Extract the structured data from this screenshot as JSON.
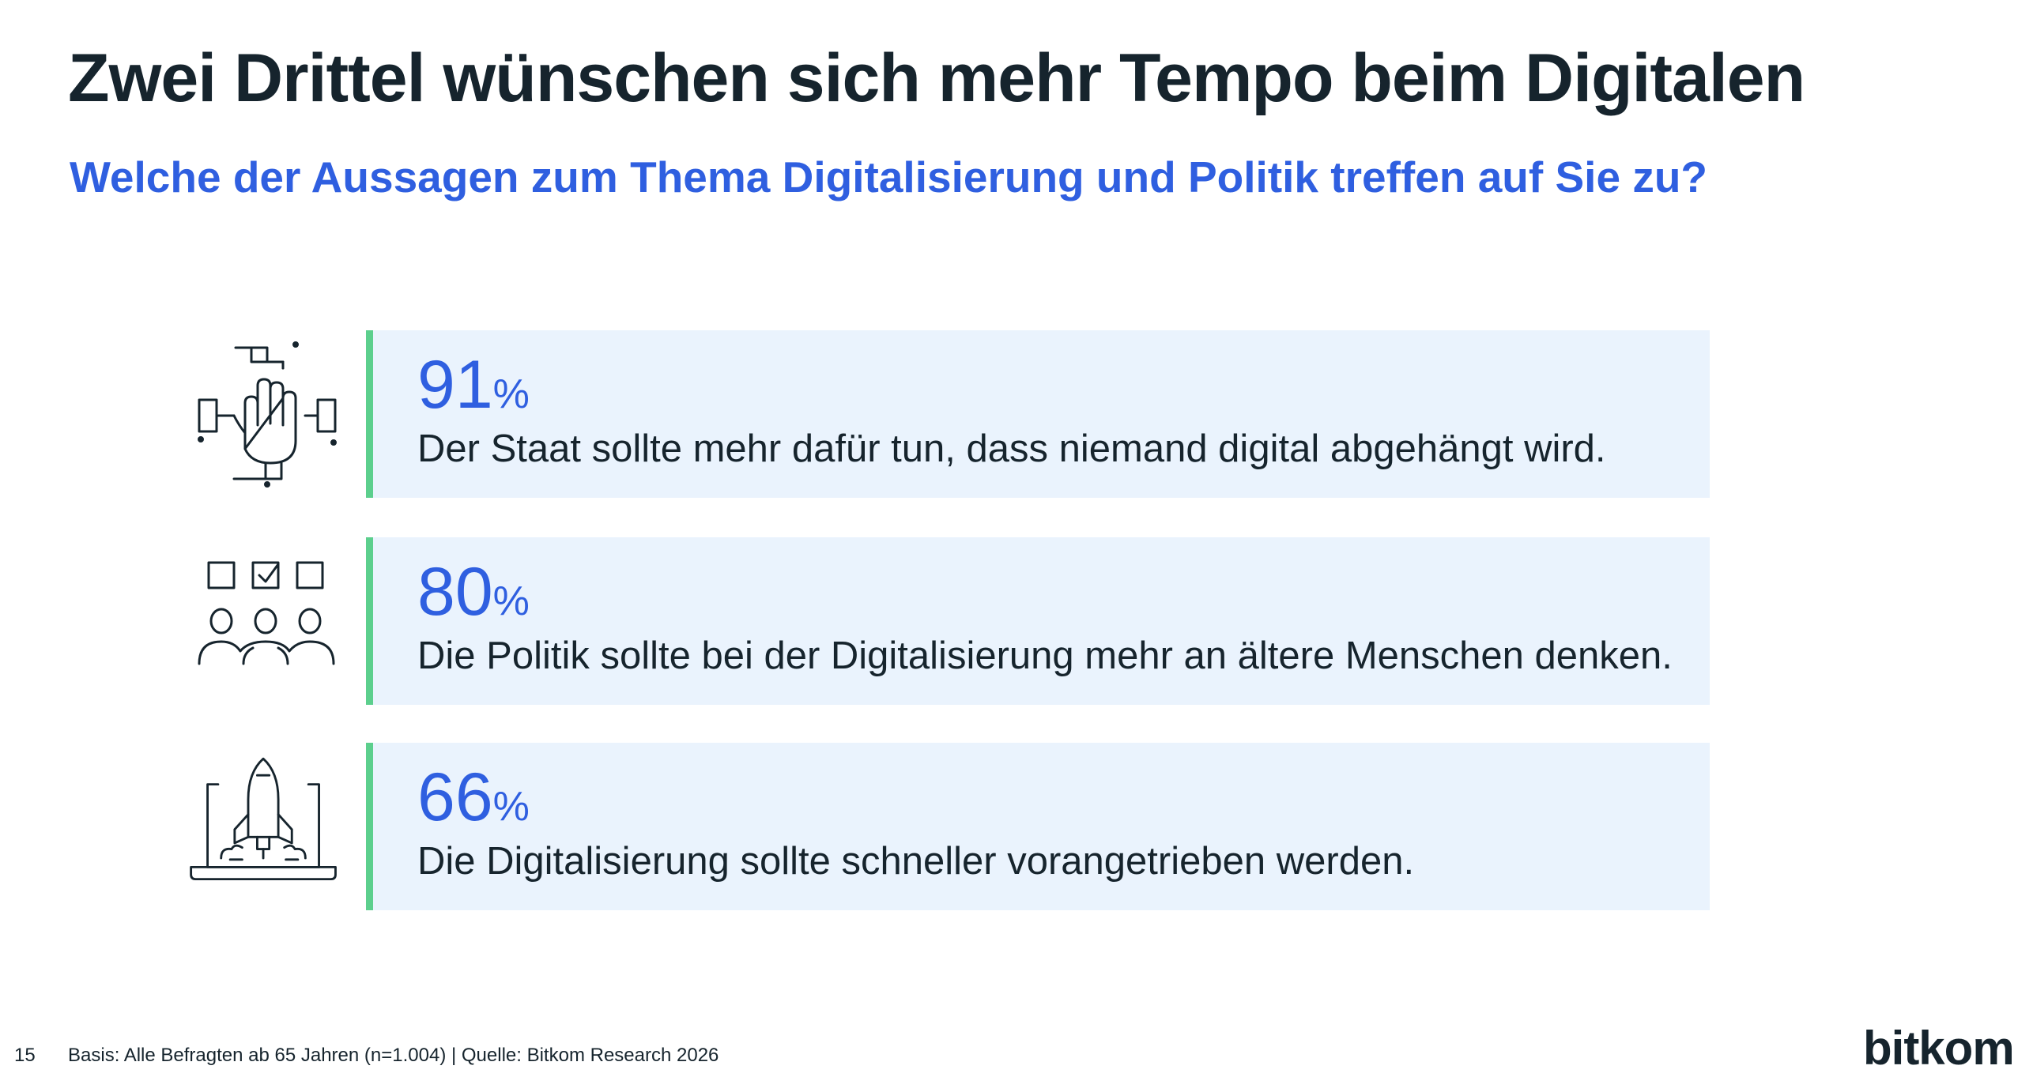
{
  "title": "Zwei Drittel wünschen sich mehr Tempo beim Digitalen",
  "subtitle": "Welche der Aussagen zum Thema Digitalisierung und Politik treffen auf Sie zu?",
  "chart_data": {
    "type": "table",
    "unit": "%",
    "categories": [
      "Der Staat sollte mehr dafür tun, dass niemand digital abgehängt wird.",
      "Die Politik sollte bei der Digitalisierung mehr an ältere Menschen denken.",
      "Die Digitalisierung sollte schneller vorangetrieben werden."
    ],
    "values": [
      91,
      80,
      66
    ]
  },
  "items": [
    {
      "value": "91",
      "unit": "%",
      "statement": "Der Staat sollte mehr dafür tun, dass niemand digital abgehängt wird.",
      "icon": "teamwork-hands-icon"
    },
    {
      "value": "80",
      "unit": "%",
      "statement": "Die Politik sollte bei der Digitalisierung mehr an ältere Menschen denken.",
      "icon": "voting-people-icon"
    },
    {
      "value": "66",
      "unit": "%",
      "statement": "Die Digitalisierung sollte schneller vorangetrieben werden.",
      "icon": "rocket-laptop-icon"
    }
  ],
  "footer": {
    "page_number": "15",
    "source": "Basis: Alle Befragten ab 65 Jahren (n=1.004) | Quelle: Bitkom Research 2026"
  },
  "logo": "bitkom",
  "colors": {
    "title": "#16242d",
    "accent": "#2f5fe0",
    "card_bg": "#eaf3fd",
    "bar": "#5ccf8d"
  }
}
